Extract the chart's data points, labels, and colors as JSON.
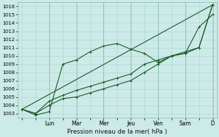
{
  "xlabel": "Pression niveau de la mer( hPa )",
  "ylim": [
    1002.5,
    1016.5
  ],
  "xlim": [
    -0.3,
    14.3
  ],
  "yticks": [
    1003,
    1004,
    1005,
    1006,
    1007,
    1008,
    1009,
    1010,
    1011,
    1012,
    1013,
    1014,
    1015,
    1016
  ],
  "day_labels": [
    "Lun",
    "Mar",
    "Mer",
    "Jeu",
    "Ven",
    "Sam",
    "D"
  ],
  "day_positions": [
    2,
    4,
    6,
    8,
    10,
    12,
    14
  ],
  "bg_color": "#cceae7",
  "grid_color": "#aed4ce",
  "dark_grid_color": "#8bbdb7",
  "line_color": "#1a5c28",
  "series": [
    {
      "x": [
        0,
        1,
        2,
        3,
        4,
        5,
        6,
        7,
        8,
        9,
        10,
        11,
        12,
        13,
        14
      ],
      "y": [
        1003.5,
        1002.8,
        1003.2,
        1009.0,
        1009.5,
        1010.5,
        1011.2,
        1011.5,
        1010.8,
        1010.3,
        1009.2,
        1010.0,
        1010.5,
        1011.0,
        1016.2
      ]
    },
    {
      "x": [
        0,
        1,
        2,
        3,
        4,
        5,
        6,
        7,
        8,
        9,
        10,
        11,
        12,
        13,
        14
      ],
      "y": [
        1003.5,
        1003.0,
        1004.5,
        1005.2,
        1005.8,
        1006.3,
        1006.8,
        1007.3,
        1007.8,
        1009.0,
        1009.5,
        1010.0,
        1010.3,
        1011.0,
        1016.2
      ]
    },
    {
      "x": [
        0,
        1,
        2,
        3,
        4,
        5,
        6,
        7,
        8,
        9,
        10,
        11,
        12,
        13,
        14
      ],
      "y": [
        1003.5,
        1003.0,
        1004.0,
        1004.8,
        1005.0,
        1005.5,
        1006.0,
        1006.5,
        1007.0,
        1008.0,
        1009.0,
        1010.0,
        1010.3,
        1013.5,
        1015.0
      ]
    },
    {
      "x": [
        0,
        14
      ],
      "y": [
        1003.5,
        1016.2
      ]
    }
  ],
  "xlabel_fontsize": 6.5,
  "ytick_fontsize": 5.2,
  "xtick_fontsize": 5.8,
  "linewidth": 0.85,
  "markersize": 2.8
}
